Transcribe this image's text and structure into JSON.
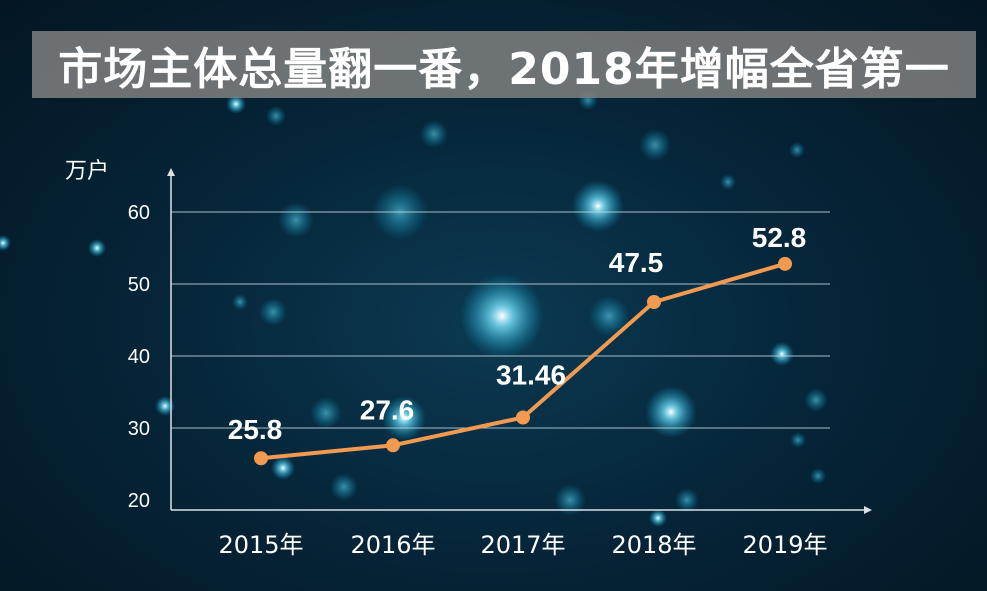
{
  "title": "市场主体总量翻一番，2018年增幅全省第一",
  "chart_data": {
    "type": "line",
    "categories": [
      "2015年",
      "2016年",
      "2017年",
      "2018年",
      "2019年"
    ],
    "series": [
      {
        "values": [
          25.8,
          27.6,
          31.46,
          47.5,
          52.8
        ]
      }
    ],
    "data_labels": [
      "25.8",
      "27.6",
      "31.46",
      "47.5",
      "52.8"
    ],
    "ylabel": "万户",
    "ylim": [
      20,
      60
    ],
    "yticks": [
      20,
      30,
      40,
      50,
      60
    ],
    "grid": true,
    "colors": {
      "line": "#f29a50",
      "grid": "#c9d6dd",
      "axis": "#d9e2e7",
      "text": "#ffffff"
    }
  }
}
